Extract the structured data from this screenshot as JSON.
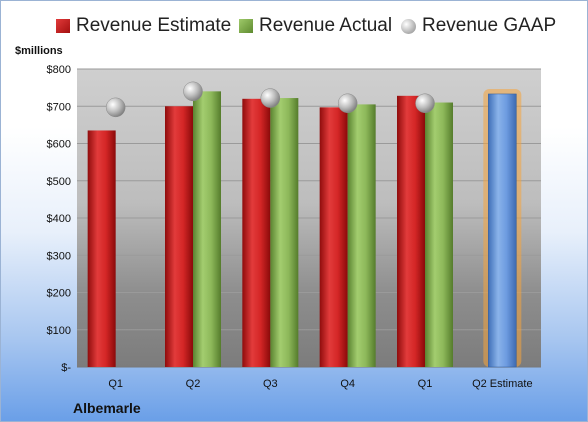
{
  "unit_label": "$millions",
  "company": "Albemarle",
  "legend": {
    "estimate": "Revenue Estimate",
    "actual": "Revenue Actual",
    "gaap": "Revenue GAAP"
  },
  "colors": {
    "estimate": "#c91c1c",
    "actual": "#7faa4a",
    "gaap": "#b8b8b8",
    "forecast": "#5f8fd6",
    "forecast_glow": "#f5a43c"
  },
  "chart_data": {
    "type": "bar",
    "title": "",
    "categories": [
      "Q1",
      "Q2",
      "Q3",
      "Q4",
      "Q1",
      "Q2 Estimate"
    ],
    "series": [
      {
        "name": "Revenue Estimate",
        "values": [
          635,
          700,
          720,
          697,
          728,
          733
        ]
      },
      {
        "name": "Revenue Actual",
        "values": [
          null,
          740,
          722,
          705,
          710,
          null
        ]
      },
      {
        "name": "Revenue GAAP",
        "values": [
          697,
          740,
          722,
          708,
          708,
          null
        ]
      }
    ],
    "ylim": [
      0,
      800
    ],
    "yticks": [
      0,
      100,
      200,
      300,
      400,
      500,
      600,
      700,
      800
    ],
    "ytick_labels": [
      "$-",
      "$100",
      "$200",
      "$300",
      "$400",
      "$500",
      "$600",
      "$700",
      "$800"
    ],
    "ylabel": "$millions",
    "xlabel": "",
    "grid": true,
    "legend_position": "top"
  }
}
